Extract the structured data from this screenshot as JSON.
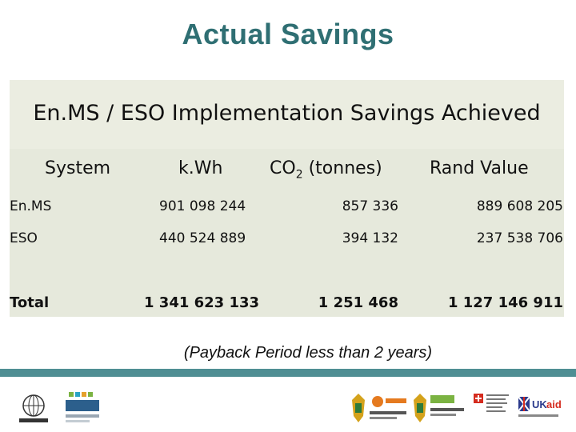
{
  "page": {
    "title": "Actual Savings"
  },
  "table": {
    "banner": "En.MS / ESO Implementation Savings Achieved",
    "headers": {
      "system": "System",
      "kwh": "k.Wh",
      "co2_prefix": "CO",
      "co2_sub": "2",
      "co2_suffix": " (tonnes)",
      "rand": "Rand Value"
    },
    "rows": [
      {
        "system": "En.MS",
        "kwh": "901 098 244",
        "co2": "857 336",
        "rand": "889 608 205"
      },
      {
        "system": "ESO",
        "kwh": "440 524 889",
        "co2": "394 132",
        "rand": "237 538 706"
      },
      {
        "system": "Total",
        "kwh": "1 341 623 133",
        "co2": "1 251 468",
        "rand": "1 127 146 911"
      }
    ]
  },
  "note": "(Payback Period less than 2 years)",
  "logos": [
    "unido-logo",
    "ncpc-logo",
    "coat-of-arms-logo",
    "the-dti-logo",
    "energy-logo",
    "swiss-confederation-logo",
    "ukaid-logo"
  ],
  "colors": {
    "title": "#2f6f73",
    "footer_bar": "#4f8e93",
    "table_bg": "#e6e9dc"
  }
}
